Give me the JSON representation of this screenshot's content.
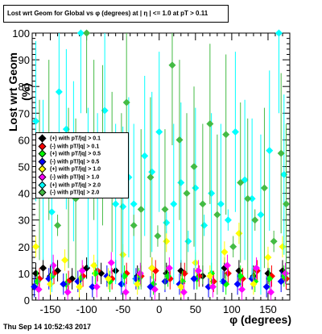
{
  "chart_data": {
    "type": "scatter",
    "title": "Lost wrt Geom for Global vs φ (degrees) at | η | <= 1.0 at pT > 0.11",
    "xlabel": "φ (degrees)",
    "ylabel": "Lost wrt Geom (%)",
    "xlim": [
      -175,
      180
    ],
    "ylim": [
      0,
      100
    ],
    "xticks": [
      -150,
      -100,
      -50,
      0,
      50,
      100,
      150
    ],
    "yticks": [
      0,
      10,
      20,
      30,
      40,
      50,
      60,
      70,
      80,
      90,
      100
    ],
    "grid": false,
    "legend_position": "left-middle",
    "series": [
      {
        "name": "(+) with pT/|q| > 0.1",
        "color": "#000000",
        "points": [
          [
            -170,
            10
          ],
          [
            -160,
            12
          ],
          [
            -150,
            9
          ],
          [
            -140,
            11
          ],
          [
            -120,
            8
          ],
          [
            -100,
            12
          ],
          [
            -80,
            10
          ],
          [
            -60,
            11
          ],
          [
            -30,
            9
          ],
          [
            -10,
            12
          ],
          [
            10,
            10
          ],
          [
            30,
            11
          ],
          [
            60,
            9
          ],
          [
            90,
            12
          ],
          [
            110,
            11
          ],
          [
            130,
            9
          ],
          [
            150,
            10
          ],
          [
            170,
            11
          ]
        ]
      },
      {
        "name": "(-) with pT/|q| > 0.1",
        "color": "#ff0000",
        "points": [
          [
            -165,
            8
          ],
          [
            -145,
            10
          ],
          [
            -125,
            7
          ],
          [
            -105,
            9
          ],
          [
            -85,
            11
          ],
          [
            -65,
            8
          ],
          [
            -45,
            10
          ],
          [
            -25,
            9
          ],
          [
            -5,
            11
          ],
          [
            15,
            8
          ],
          [
            35,
            10
          ],
          [
            55,
            9
          ],
          [
            75,
            7
          ],
          [
            95,
            10
          ],
          [
            115,
            8
          ],
          [
            135,
            11
          ],
          [
            155,
            9
          ],
          [
            175,
            8
          ]
        ]
      },
      {
        "name": "(+) with pT/|q| > 0.5",
        "color": "#00ff00",
        "points": [
          [
            -168,
            7
          ],
          [
            -148,
            9
          ],
          [
            -128,
            6
          ],
          [
            -108,
            8
          ],
          [
            -88,
            10
          ],
          [
            -68,
            7
          ],
          [
            -48,
            9
          ],
          [
            -28,
            8
          ],
          [
            -8,
            6
          ],
          [
            12,
            9
          ],
          [
            32,
            7
          ],
          [
            52,
            8
          ],
          [
            72,
            10
          ],
          [
            92,
            6
          ],
          [
            112,
            9
          ],
          [
            132,
            7
          ],
          [
            152,
            8
          ],
          [
            172,
            9
          ]
        ]
      },
      {
        "name": "(-) with pT/|q| > 0.5",
        "color": "#0000ff",
        "points": [
          [
            -172,
            5
          ],
          [
            -152,
            8
          ],
          [
            -132,
            6
          ],
          [
            -112,
            7
          ],
          [
            -92,
            5
          ],
          [
            -72,
            9
          ],
          [
            -52,
            6
          ],
          [
            -32,
            8
          ],
          [
            -12,
            5
          ],
          [
            8,
            7
          ],
          [
            28,
            6
          ],
          [
            48,
            8
          ],
          [
            68,
            5
          ],
          [
            88,
            7
          ],
          [
            108,
            6
          ],
          [
            128,
            8
          ],
          [
            148,
            5
          ],
          [
            168,
            7
          ]
        ]
      },
      {
        "name": "(+) with pT/|q| > 1.0",
        "color": "#ffff00",
        "points": [
          [
            -170,
            20
          ],
          [
            -150,
            6
          ],
          [
            -130,
            15
          ],
          [
            -110,
            5
          ],
          [
            -90,
            13
          ],
          [
            -70,
            8
          ],
          [
            -50,
            17
          ],
          [
            -30,
            6
          ],
          [
            -10,
            12
          ],
          [
            10,
            22
          ],
          [
            30,
            5
          ],
          [
            50,
            14
          ],
          [
            70,
            9
          ],
          [
            90,
            18
          ],
          [
            110,
            25
          ],
          [
            130,
            6
          ],
          [
            150,
            16
          ],
          [
            170,
            20
          ]
        ]
      },
      {
        "name": "(-) with pT/|q| > 1.0",
        "color": "#ff00ff",
        "points": [
          [
            -166,
            4
          ],
          [
            -146,
            13
          ],
          [
            -126,
            3
          ],
          [
            -106,
            11
          ],
          [
            -86,
            5
          ],
          [
            -66,
            14
          ],
          [
            -46,
            3
          ],
          [
            -26,
            10
          ],
          [
            -6,
            4
          ],
          [
            14,
            12
          ],
          [
            34,
            3
          ],
          [
            54,
            11
          ],
          [
            74,
            5
          ],
          [
            94,
            13
          ],
          [
            114,
            4
          ],
          [
            134,
            12
          ],
          [
            154,
            3
          ],
          [
            174,
            10
          ]
        ]
      },
      {
        "name": "(+) with pT/|q| > 2.0",
        "color": "#00ffff",
        "points": [
          [
            -170,
            67
          ],
          [
            -160,
            45
          ],
          [
            -148,
            33
          ],
          [
            -138,
            78
          ],
          [
            -128,
            64
          ],
          [
            -118,
            52
          ],
          [
            -108,
            100
          ],
          [
            -98,
            42
          ],
          [
            -85,
            40
          ],
          [
            -75,
            71
          ],
          [
            -60,
            36
          ],
          [
            -50,
            35
          ],
          [
            -42,
            46
          ],
          [
            -35,
            36
          ],
          [
            -20,
            54
          ],
          [
            -10,
            48
          ],
          [
            0,
            63
          ],
          [
            10,
            29
          ],
          [
            20,
            36
          ],
          [
            30,
            44
          ],
          [
            40,
            22
          ],
          [
            50,
            42
          ],
          [
            62,
            28
          ],
          [
            72,
            40
          ],
          [
            85,
            36
          ],
          [
            95,
            30
          ],
          [
            105,
            63
          ],
          [
            118,
            45
          ],
          [
            128,
            38
          ],
          [
            140,
            32
          ],
          [
            152,
            56
          ],
          [
            165,
            100
          ],
          [
            172,
            47
          ]
        ]
      },
      {
        "name": "(-) with pT/|q| > 2.0",
        "color": "#44bb44",
        "points": [
          [
            -165,
            45
          ],
          [
            -152,
            60
          ],
          [
            -140,
            28
          ],
          [
            -125,
            42
          ],
          [
            -115,
            38
          ],
          [
            -100,
            100
          ],
          [
            -90,
            60
          ],
          [
            -78,
            58
          ],
          [
            -65,
            48
          ],
          [
            -52,
            40
          ],
          [
            -45,
            74
          ],
          [
            -35,
            28
          ],
          [
            -25,
            34
          ],
          [
            -12,
            46
          ],
          [
            -2,
            24
          ],
          [
            8,
            34
          ],
          [
            18,
            88
          ],
          [
            28,
            60
          ],
          [
            38,
            40
          ],
          [
            48,
            50
          ],
          [
            60,
            36
          ],
          [
            70,
            66
          ],
          [
            80,
            32
          ],
          [
            92,
            62
          ],
          [
            102,
            20
          ],
          [
            112,
            44
          ],
          [
            122,
            38
          ],
          [
            132,
            30
          ],
          [
            145,
            42
          ],
          [
            158,
            22
          ],
          [
            168,
            55
          ],
          [
            175,
            36
          ]
        ]
      }
    ]
  },
  "timestamp": "Thu Sep 14 10:52:43 2017"
}
